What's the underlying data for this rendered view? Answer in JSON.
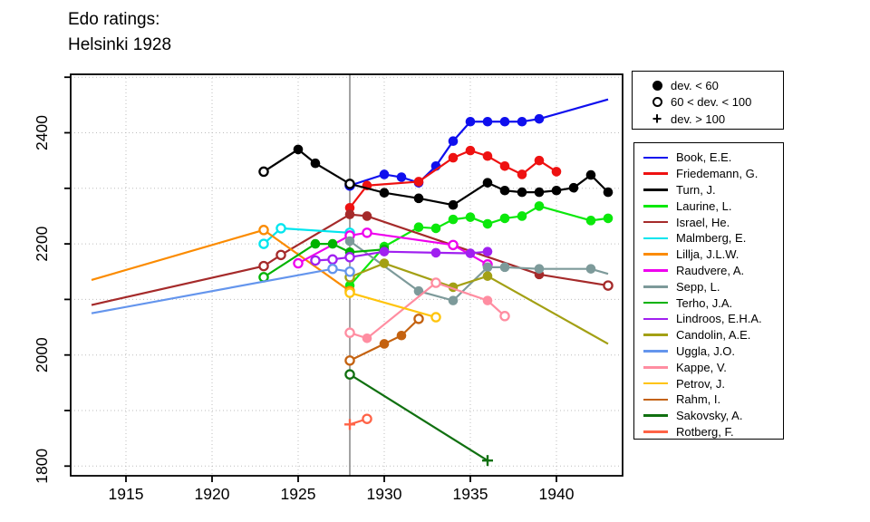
{
  "title": {
    "line1": "Edo ratings:",
    "line2": "Helsinki 1928"
  },
  "chart_data": {
    "type": "line",
    "title": "Edo ratings: Helsinki 1928",
    "xlabel": "",
    "ylabel": "",
    "x_axis": {
      "ticks": [
        1915,
        1920,
        1925,
        1930,
        1935,
        1940
      ],
      "range": [
        1911.8,
        1943.8
      ],
      "gridlines": "dotted"
    },
    "y_axis": {
      "labeled_ticks": [
        1800,
        2000,
        2200,
        2400
      ],
      "all_ticks": [
        1800,
        1900,
        2000,
        2100,
        2200,
        2300,
        2400,
        2500
      ],
      "range": [
        1783,
        2505
      ],
      "gridlines": "dotted"
    },
    "event_line_year": 1928,
    "marker_legend": [
      {
        "symbol": "dot",
        "label": "dev. < 60"
      },
      {
        "symbol": "open",
        "label": "60 < dev. < 100"
      },
      {
        "symbol": "plus",
        "label": "dev. > 100"
      }
    ],
    "series": [
      {
        "name": "Book, E.E.",
        "color": "#0F0FEE",
        "points": [
          [
            1928,
            2305,
            "open"
          ],
          [
            1930,
            2325,
            "dot"
          ],
          [
            1931,
            2320,
            "dot"
          ],
          [
            1932,
            2310,
            "dot"
          ],
          [
            1933,
            2340,
            "dot"
          ],
          [
            1934,
            2385,
            "dot"
          ],
          [
            1935,
            2420,
            "dot"
          ],
          [
            1936,
            2420,
            "dot"
          ],
          [
            1937,
            2420,
            "dot"
          ],
          [
            1938,
            2420,
            "dot"
          ],
          [
            1939,
            2425,
            "dot"
          ],
          [
            1943,
            2460,
            "none"
          ]
        ]
      },
      {
        "name": "Friedemann, G.",
        "color": "#EE1111",
        "points": [
          [
            1928,
            2265,
            "dot"
          ],
          [
            1929,
            2305,
            "dot"
          ],
          [
            1932,
            2312,
            "dot"
          ],
          [
            1934,
            2355,
            "dot"
          ],
          [
            1935,
            2368,
            "dot"
          ],
          [
            1936,
            2358,
            "dot"
          ],
          [
            1937,
            2340,
            "dot"
          ],
          [
            1938,
            2325,
            "dot"
          ],
          [
            1939,
            2350,
            "dot"
          ],
          [
            1940,
            2330,
            "dot"
          ]
        ]
      },
      {
        "name": "Turn, J.",
        "color": "#000000",
        "points": [
          [
            1923,
            2330,
            "open"
          ],
          [
            1925,
            2370,
            "dot"
          ],
          [
            1926,
            2345,
            "dot"
          ],
          [
            1928,
            2308,
            "open"
          ],
          [
            1930,
            2292,
            "dot"
          ],
          [
            1932,
            2282,
            "dot"
          ],
          [
            1934,
            2270,
            "dot"
          ],
          [
            1936,
            2310,
            "dot"
          ],
          [
            1937,
            2296,
            "dot"
          ],
          [
            1938,
            2293,
            "dot"
          ],
          [
            1939,
            2293,
            "dot"
          ],
          [
            1940,
            2296,
            "dot"
          ],
          [
            1941,
            2301,
            "dot"
          ],
          [
            1942,
            2324,
            "dot"
          ],
          [
            1943,
            2293,
            "dot"
          ]
        ]
      },
      {
        "name": "Laurine, L.",
        "color": "#0BE80B",
        "points": [
          [
            1928,
            2125,
            "dot"
          ],
          [
            1930,
            2195,
            "dot"
          ],
          [
            1932,
            2230,
            "dot"
          ],
          [
            1933,
            2228,
            "dot"
          ],
          [
            1934,
            2244,
            "dot"
          ],
          [
            1935,
            2248,
            "dot"
          ],
          [
            1936,
            2236,
            "dot"
          ],
          [
            1937,
            2246,
            "dot"
          ],
          [
            1938,
            2250,
            "dot"
          ],
          [
            1939,
            2268,
            "dot"
          ],
          [
            1942,
            2242,
            "dot"
          ],
          [
            1943,
            2246,
            "dot"
          ]
        ]
      },
      {
        "name": "Israel, He.",
        "color": "#A52A2A",
        "points": [
          [
            1913,
            2090,
            "none"
          ],
          [
            1923,
            2160,
            "open"
          ],
          [
            1924,
            2180,
            "open"
          ],
          [
            1928,
            2253,
            "dot"
          ],
          [
            1929,
            2250,
            "dot"
          ],
          [
            1939,
            2145,
            "dot"
          ],
          [
            1943,
            2125,
            "open"
          ]
        ]
      },
      {
        "name": "Malmberg, E.",
        "color": "#00E5EE",
        "points": [
          [
            1923,
            2200,
            "open"
          ],
          [
            1924,
            2228,
            "open"
          ],
          [
            1928,
            2220,
            "open"
          ]
        ]
      },
      {
        "name": "Lillja, J.L.W.",
        "color": "#FB8B00",
        "points": [
          [
            1913,
            2135,
            "none"
          ],
          [
            1923,
            2225,
            "open"
          ],
          [
            1928,
            2115,
            "open"
          ]
        ]
      },
      {
        "name": "Raudvere, A.",
        "color": "#EE00EE",
        "points": [
          [
            1925,
            2165,
            "open"
          ],
          [
            1928,
            2215,
            "open"
          ],
          [
            1929,
            2220,
            "open"
          ],
          [
            1934,
            2198,
            "open"
          ],
          [
            1936,
            2163,
            "open"
          ]
        ]
      },
      {
        "name": "Sepp, L.",
        "color": "#7D9A9A",
        "points": [
          [
            1928,
            2205,
            "dot"
          ],
          [
            1932,
            2115,
            "dot"
          ],
          [
            1934,
            2098,
            "dot"
          ],
          [
            1936,
            2158,
            "dot"
          ],
          [
            1937,
            2158,
            "dot"
          ],
          [
            1939,
            2155,
            "dot"
          ],
          [
            1942,
            2155,
            "dot"
          ],
          [
            1943,
            2146,
            "none"
          ]
        ]
      },
      {
        "name": "Terho, J.A.",
        "color": "#00B200",
        "points": [
          [
            1923,
            2140,
            "open"
          ],
          [
            1926,
            2200,
            "dot"
          ],
          [
            1927,
            2200,
            "dot"
          ],
          [
            1928,
            2185,
            "dot"
          ],
          [
            1930,
            2190,
            "dot"
          ]
        ]
      },
      {
        "name": "Lindroos, E.H.A.",
        "color": "#A020F0",
        "points": [
          [
            1926,
            2170,
            "open"
          ],
          [
            1927,
            2172,
            "open"
          ],
          [
            1928,
            2176,
            "open"
          ],
          [
            1930,
            2186,
            "dot"
          ],
          [
            1933,
            2184,
            "dot"
          ],
          [
            1935,
            2183,
            "dot"
          ],
          [
            1936,
            2186,
            "dot"
          ]
        ]
      },
      {
        "name": "Candolin, A.E.",
        "color": "#A3A014",
        "points": [
          [
            1928,
            2140,
            "open"
          ],
          [
            1930,
            2165,
            "dot"
          ],
          [
            1934,
            2122,
            "dot"
          ],
          [
            1936,
            2142,
            "dot"
          ],
          [
            1943,
            2020,
            "none"
          ]
        ]
      },
      {
        "name": "Uggla, J.O.",
        "color": "#6495ED",
        "points": [
          [
            1913,
            2075,
            "none"
          ],
          [
            1927,
            2155,
            "open"
          ],
          [
            1928,
            2150,
            "open"
          ]
        ]
      },
      {
        "name": "Kappe, V.",
        "color": "#FF8DA1",
        "points": [
          [
            1928,
            2040,
            "open"
          ],
          [
            1929,
            2030,
            "dot"
          ],
          [
            1933,
            2130,
            "open"
          ],
          [
            1936,
            2098,
            "dot"
          ],
          [
            1937,
            2070,
            "open"
          ]
        ]
      },
      {
        "name": "Petrov, J.",
        "color": "#FFC40C",
        "points": [
          [
            1928,
            2112,
            "open"
          ],
          [
            1933,
            2068,
            "open"
          ]
        ]
      },
      {
        "name": "Rahm, I.",
        "color": "#C46210",
        "points": [
          [
            1928,
            1990,
            "open"
          ],
          [
            1930,
            2020,
            "dot"
          ],
          [
            1931,
            2035,
            "dot"
          ],
          [
            1932,
            2065,
            "open"
          ]
        ]
      },
      {
        "name": "Sakovsky, A.",
        "color": "#107010",
        "points": [
          [
            1928,
            1965,
            "open"
          ],
          [
            1936,
            1810,
            "plus"
          ]
        ]
      },
      {
        "name": "Rotberg, F.",
        "color": "#FF6347",
        "points": [
          [
            1928,
            1875,
            "plus"
          ],
          [
            1929,
            1885,
            "open"
          ]
        ]
      }
    ]
  },
  "colors": {
    "grid": "#BDBDBD",
    "event_line": "#8C8C8C",
    "frame": "#000000",
    "background": "#FFFFFF"
  }
}
